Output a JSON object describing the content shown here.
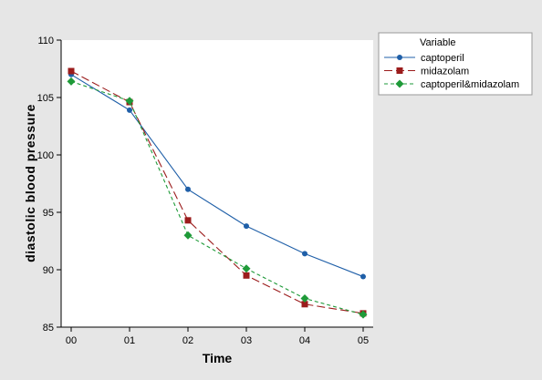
{
  "chart_data": {
    "type": "line",
    "xlabel": "Time",
    "ylabel": "diastolic blood pressure",
    "categories": [
      "00",
      "01",
      "02",
      "03",
      "04",
      "05"
    ],
    "ylim": [
      85,
      110
    ],
    "yticks": [
      85,
      90,
      95,
      100,
      105,
      110
    ],
    "grid": false,
    "legend": {
      "title": "Variable",
      "placement": "right"
    },
    "series": [
      {
        "name": "captoperil",
        "values": [
          107.0,
          103.9,
          97.0,
          93.8,
          91.4,
          89.4
        ],
        "color": "#1f5fa8",
        "marker": "circle",
        "line_style": "solid"
      },
      {
        "name": "midazolam",
        "values": [
          107.3,
          104.6,
          94.3,
          89.5,
          87.0,
          86.2
        ],
        "color": "#9b1c1c",
        "marker": "square",
        "line_style": "long-dash"
      },
      {
        "name": "captoperil&midazolam",
        "values": [
          106.4,
          104.7,
          93.0,
          90.1,
          87.5,
          86.1
        ],
        "color": "#1e9a38",
        "marker": "diamond",
        "line_style": "short-dash"
      }
    ]
  }
}
